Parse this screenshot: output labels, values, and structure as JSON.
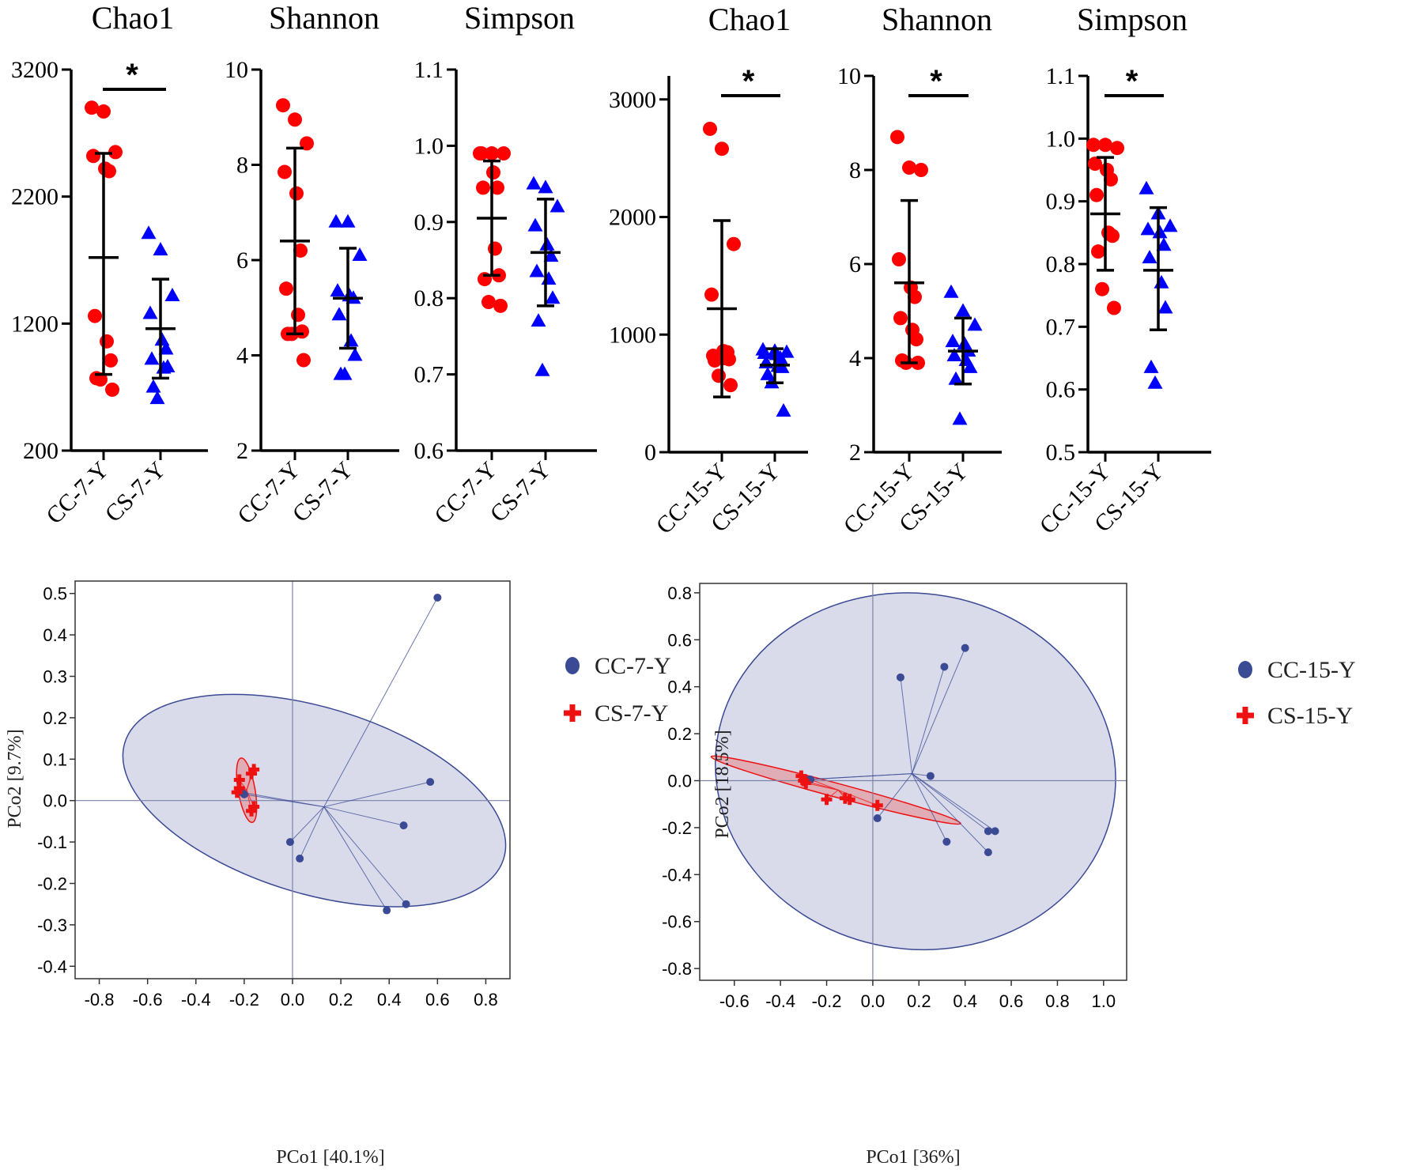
{
  "colors": {
    "cc": "#ff0000",
    "cs": "#0000ff",
    "pcoa_cc": "#3b4a94",
    "pcoa_cs": "#ee1111",
    "pcoa_cc_fill": "#d9dbeb",
    "pcoa_cs_fill": "#e0a3ab",
    "axis": "#000000"
  },
  "chart_data": [
    {
      "type": "scatter",
      "title": "Chao1",
      "categories": [
        "CC-7-Y",
        "CS-7-Y"
      ],
      "ylim": [
        200,
        3200
      ],
      "yticks": [
        200,
        1200,
        2200,
        3200
      ],
      "yticklabels": [
        "200",
        "1200",
        "2200",
        "3200"
      ],
      "significance": "*",
      "series": [
        {
          "name": "CC-7-Y",
          "values": [
            2900,
            2870,
            2550,
            2520,
            2420,
            2400,
            1260,
            1060,
            910,
            770,
            760,
            680
          ],
          "mean": 1720,
          "sd_low": 800,
          "sd_high": 2540
        },
        {
          "name": "CS-7-Y",
          "values": [
            1910,
            1780,
            1420,
            1280,
            1070,
            1000,
            920,
            850,
            860,
            700,
            610
          ],
          "mean": 1160,
          "sd_low": 770,
          "sd_high": 1550
        }
      ]
    },
    {
      "type": "scatter",
      "title": "Shannon",
      "categories": [
        "CC-7-Y",
        "CS-7-Y"
      ],
      "ylim": [
        2,
        10
      ],
      "yticks": [
        2,
        4,
        6,
        8,
        10
      ],
      "yticklabels": [
        "2",
        "4",
        "6",
        "8",
        "10"
      ],
      "significance": "",
      "series": [
        {
          "name": "CC-7-Y",
          "values": [
            9.25,
            8.95,
            8.45,
            7.85,
            7.4,
            6.2,
            5.4,
            4.85,
            4.5,
            4.45,
            4.45,
            3.9
          ],
          "mean": 6.4,
          "sd_low": 4.45,
          "sd_high": 8.35
        },
        {
          "name": "CS-7-Y",
          "values": [
            6.8,
            6.8,
            6.1,
            5.35,
            5.25,
            5.2,
            4.85,
            4.3,
            4.0,
            3.6,
            3.6
          ],
          "mean": 5.2,
          "sd_low": 4.15,
          "sd_high": 6.25
        }
      ]
    },
    {
      "type": "scatter",
      "title": "Simpson",
      "categories": [
        "CC-7-Y",
        "CS-7-Y"
      ],
      "ylim": [
        0.6,
        1.1
      ],
      "yticks": [
        0.6,
        0.7,
        0.8,
        0.9,
        1.0,
        1.1
      ],
      "yticklabels": [
        "0.6",
        "0.7",
        "0.8",
        "0.9",
        "1.0",
        "1.1"
      ],
      "significance": "",
      "series": [
        {
          "name": "CC-7-Y",
          "values": [
            0.99,
            0.99,
            0.99,
            0.99,
            0.965,
            0.945,
            0.945,
            0.865,
            0.83,
            0.825,
            0.795,
            0.79
          ],
          "mean": 0.905,
          "sd_low": 0.83,
          "sd_high": 0.98
        },
        {
          "name": "CS-7-Y",
          "values": [
            0.95,
            0.945,
            0.92,
            0.895,
            0.87,
            0.855,
            0.835,
            0.825,
            0.8,
            0.77,
            0.705
          ],
          "mean": 0.86,
          "sd_low": 0.79,
          "sd_high": 0.93
        }
      ]
    },
    {
      "type": "scatter",
      "title": "Chao1",
      "categories": [
        "CC-15-Y",
        "CS-15-Y"
      ],
      "ylim": [
        0,
        3200
      ],
      "yticks": [
        0,
        1000,
        2000,
        3000
      ],
      "yticklabels": [
        "0",
        "1000",
        "2000",
        "3000"
      ],
      "significance": "*",
      "series": [
        {
          "name": "CC-15-Y",
          "values": [
            2750,
            2580,
            1770,
            1340,
            860,
            850,
            820,
            800,
            790,
            780,
            650,
            570
          ],
          "mean": 1220,
          "sd_low": 470,
          "sd_high": 1970
        },
        {
          "name": "CS-15-Y",
          "values": [
            870,
            860,
            850,
            840,
            830,
            800,
            760,
            730,
            720,
            660,
            590,
            350
          ],
          "mean": 740,
          "sd_low": 590,
          "sd_high": 880
        }
      ]
    },
    {
      "type": "scatter",
      "title": "Shannon",
      "categories": [
        "CC-15-Y",
        "CS-15-Y"
      ],
      "ylim": [
        2,
        10
      ],
      "yticks": [
        2,
        4,
        6,
        8,
        10
      ],
      "yticklabels": [
        "2",
        "4",
        "6",
        "8",
        "10"
      ],
      "significance": "*",
      "series": [
        {
          "name": "CC-15-Y",
          "values": [
            8.7,
            8.05,
            8.0,
            6.1,
            5.5,
            5.3,
            4.85,
            4.6,
            4.4,
            3.95,
            3.9,
            3.9
          ],
          "mean": 5.6,
          "sd_low": 3.9,
          "sd_high": 7.35
        },
        {
          "name": "CS-15-Y",
          "values": [
            5.4,
            5.0,
            4.7,
            4.35,
            4.3,
            4.15,
            4.05,
            3.95,
            3.8,
            3.55,
            2.7
          ],
          "mean": 4.15,
          "sd_low": 3.45,
          "sd_high": 4.85
        }
      ]
    },
    {
      "type": "scatter",
      "title": "Simpson",
      "categories": [
        "CC-15-Y",
        "CS-15-Y"
      ],
      "ylim": [
        0.5,
        1.1
      ],
      "yticks": [
        0.5,
        0.6,
        0.7,
        0.8,
        0.9,
        1.0,
        1.1
      ],
      "yticklabels": [
        "0.5",
        "0.6",
        "0.7",
        "0.8",
        "0.9",
        "1.0",
        "1.1"
      ],
      "significance": "*",
      "series": [
        {
          "name": "CC-15-Y",
          "values": [
            0.99,
            0.99,
            0.985,
            0.96,
            0.95,
            0.935,
            0.91,
            0.85,
            0.845,
            0.82,
            0.76,
            0.73
          ],
          "mean": 0.88,
          "sd_low": 0.79,
          "sd_high": 0.97
        },
        {
          "name": "CS-15-Y",
          "values": [
            0.92,
            0.88,
            0.86,
            0.855,
            0.85,
            0.83,
            0.81,
            0.77,
            0.73,
            0.635,
            0.61
          ],
          "mean": 0.79,
          "sd_low": 0.695,
          "sd_high": 0.89
        }
      ]
    },
    {
      "type": "scatter",
      "title": "",
      "xlabel": "PCo1 [40.1%]",
      "ylabel": "PCo2 [9.7%]",
      "xlim": [
        -0.9,
        0.9
      ],
      "ylim": [
        -0.43,
        0.53
      ],
      "xticks": [
        -0.8,
        -0.6,
        -0.4,
        -0.2,
        0.0,
        0.2,
        0.4,
        0.6,
        0.8
      ],
      "xticklabels": [
        "-0.8",
        "-0.6",
        "-0.4",
        "-0.2",
        "0.0",
        "0.2",
        "0.4",
        "0.6",
        "0.8"
      ],
      "yticks": [
        -0.4,
        -0.3,
        -0.2,
        -0.1,
        0.0,
        0.1,
        0.2,
        0.3,
        0.4,
        0.5
      ],
      "yticklabels": [
        "-0.4",
        "-0.3",
        "-0.2",
        "-0.1",
        "0.0",
        "0.1",
        "0.2",
        "0.3",
        "0.4",
        "0.5"
      ],
      "legend": [
        "CC-7-Y",
        "CS-7-Y"
      ],
      "series": [
        {
          "name": "CC-7-Y",
          "centroid": [
            0.13,
            -0.015
          ],
          "ellipse": {
            "cx": 0.09,
            "cy": 0.0,
            "rx": 0.82,
            "ry": 0.385,
            "angle_deg": 17
          },
          "points": [
            [
              0.6,
              0.49
            ],
            [
              0.57,
              0.045
            ],
            [
              0.46,
              -0.06
            ],
            [
              0.47,
              -0.25
            ],
            [
              0.39,
              -0.265
            ],
            [
              -0.01,
              -0.1
            ],
            [
              0.03,
              -0.14
            ],
            [
              -0.2,
              0.015
            ],
            [
              -0.21,
              0.02
            ]
          ]
        },
        {
          "name": "CS-7-Y",
          "centroid": [
            -0.19,
            0.025
          ],
          "ellipse": {
            "cx": -0.19,
            "cy": 0.025,
            "rx": 0.135,
            "ry": 0.035,
            "angle_deg": 80
          },
          "points": [
            [
              -0.16,
              0.075
            ],
            [
              -0.17,
              0.065
            ],
            [
              -0.22,
              0.05
            ],
            [
              -0.22,
              0.03
            ],
            [
              -0.23,
              0.02
            ],
            [
              -0.16,
              -0.015
            ],
            [
              -0.17,
              -0.025
            ]
          ]
        }
      ]
    },
    {
      "type": "scatter",
      "title": "",
      "xlabel": "PCo1 [36%]",
      "ylabel": "PCo2 [18.5%]",
      "xlim": [
        -0.75,
        1.1
      ],
      "ylim": [
        -0.85,
        0.84
      ],
      "xticks": [
        -0.6,
        -0.4,
        -0.2,
        0.0,
        0.2,
        0.4,
        0.6,
        0.8,
        1.0
      ],
      "xticklabels": [
        "-0.6",
        "-0.4",
        "-0.2",
        "0.0",
        "0.2",
        "0.4",
        "0.6",
        "0.8",
        "1.0"
      ],
      "yticks": [
        -0.8,
        -0.6,
        -0.4,
        -0.2,
        0.0,
        0.2,
        0.4,
        0.6,
        0.8
      ],
      "yticklabels": [
        "-0.8",
        "-0.6",
        "-0.4",
        "-0.2",
        "0.0",
        "0.2",
        "0.4",
        "0.6",
        "0.8"
      ],
      "legend": [
        "CC-15-Y",
        "CS-15-Y"
      ],
      "series": [
        {
          "name": "CC-15-Y",
          "centroid": [
            0.17,
            0.03
          ],
          "ellipse": {
            "cx": 0.185,
            "cy": 0.04,
            "rx": 0.87,
            "ry": 0.77,
            "angle_deg": 10
          },
          "points": [
            [
              0.4,
              0.565
            ],
            [
              0.31,
              0.485
            ],
            [
              0.12,
              0.44
            ],
            [
              0.25,
              0.02
            ],
            [
              0.5,
              -0.215
            ],
            [
              0.53,
              -0.215
            ],
            [
              0.5,
              -0.305
            ],
            [
              0.32,
              -0.26
            ],
            [
              0.02,
              -0.16
            ],
            [
              -0.27,
              0.005
            ],
            [
              -0.29,
              0.005
            ]
          ]
        },
        {
          "name": "CS-15-Y",
          "centroid": [
            -0.15,
            -0.04
          ],
          "ellipse": {
            "cx": -0.16,
            "cy": -0.04,
            "rx": 0.56,
            "ry": 0.03,
            "angle_deg": 15
          },
          "points": [
            [
              -0.31,
              0.02
            ],
            [
              -0.3,
              0.0
            ],
            [
              -0.29,
              -0.01
            ],
            [
              -0.2,
              -0.08
            ],
            [
              -0.12,
              -0.075
            ],
            [
              -0.1,
              -0.08
            ],
            [
              0.02,
              -0.105
            ]
          ]
        }
      ]
    }
  ]
}
